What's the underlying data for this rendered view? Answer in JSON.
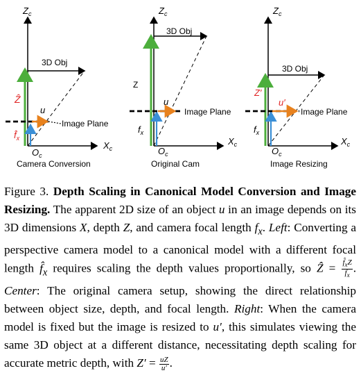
{
  "panels": {
    "left": {
      "axis_z": "Zc",
      "axis_x": "Xc",
      "origin": "Oc",
      "obj": "3D Obj",
      "plane": "Image Plane",
      "z_label": "Ẑ",
      "f_label": "f̂x",
      "u_label": "u",
      "title": "Camera Conversion"
    },
    "center": {
      "axis_z": "Zc",
      "axis_x": "Xc",
      "origin": "Oc",
      "obj": "3D Obj",
      "plane": "Image Plane",
      "z_label": "Z",
      "f_label": "fx",
      "u_label": "u",
      "title": "Original Cam"
    },
    "right": {
      "axis_z": "Zc",
      "axis_x": "Xc",
      "origin": "Oc",
      "obj": "3D Obj",
      "plane": "Image Plane",
      "z_label": "Z′",
      "f_label": "fx",
      "u_label": "u′",
      "title": "Image Resizing"
    }
  },
  "caption": {
    "figure_label": "Figure 3.",
    "title": "Depth Scaling in Canonical Model Conversion and Image Resizing.",
    "seg1": "The apparent 2D size of an object",
    "seg2": "in an image depends on its 3D dimensions",
    "seg3": ", depth",
    "seg4": ", and camera focal length",
    "left_label": "Left",
    "seg5": ": Converting a perspective camera model to a canonical model with a different focal length",
    "seg6": "requires scaling the depth values proportionally, so",
    "center_label": "Center",
    "seg7": ": The original camera setup, showing the direct relationship between object size, depth, and focal length.",
    "right_label": "Right",
    "seg8": ": When the camera model is fixed but the image is resized to",
    "seg9": ", this simulates viewing the same 3D object at a different distance, necessitating depth scaling for accurate metric depth, with"
  },
  "colors": {
    "green": "#4cae3c",
    "orange": "#e8821e",
    "blue": "#3b8fd6",
    "red": "#e02424"
  }
}
